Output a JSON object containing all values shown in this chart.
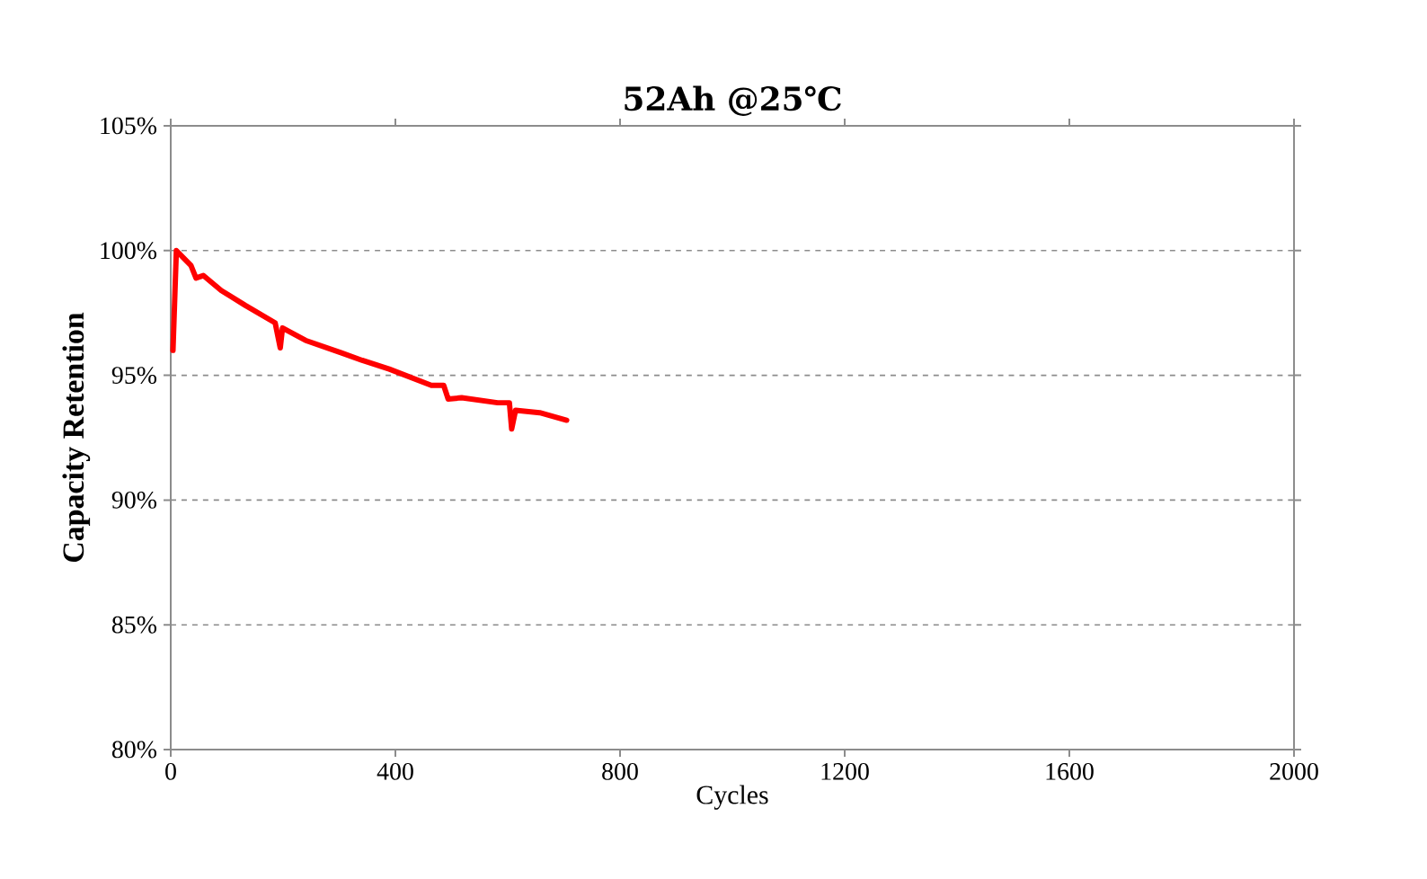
{
  "chart_data": {
    "type": "line",
    "title": "52Ah @25℃",
    "xlabel": "Cycles",
    "ylabel": "Capacity Retention",
    "xlim": [
      0,
      2000
    ],
    "xticks": [
      0,
      400,
      800,
      1200,
      1600,
      2000
    ],
    "ylim": [
      80,
      105
    ],
    "yticks": [
      {
        "value": 80,
        "label": "80%"
      },
      {
        "value": 85,
        "label": "85%"
      },
      {
        "value": 90,
        "label": "90%"
      },
      {
        "value": 95,
        "label": "95%"
      },
      {
        "value": 100,
        "label": "100%"
      },
      {
        "value": 105,
        "label": "105%"
      }
    ],
    "grid": "y",
    "marker": "none",
    "line_style": "solid",
    "series": [
      {
        "color": "#ff0000",
        "x": [
          4,
          10,
          36,
          45,
          58,
          90,
          133,
          186,
          195,
          199,
          240,
          304,
          341,
          389,
          464,
          486,
          494,
          518,
          582,
          603,
          607,
          614,
          657,
          705
        ],
        "values": [
          96.0,
          100.0,
          99.4,
          98.9,
          99.0,
          98.4,
          97.8,
          97.1,
          96.1,
          96.9,
          96.4,
          95.9,
          95.6,
          95.25,
          94.6,
          94.6,
          94.05,
          94.1,
          93.9,
          93.9,
          92.85,
          93.6,
          93.5,
          93.2
        ]
      }
    ]
  }
}
